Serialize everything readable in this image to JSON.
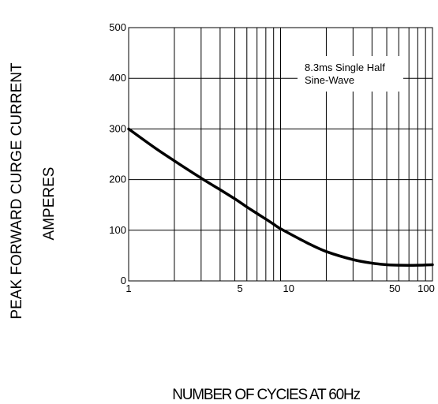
{
  "chart_data": {
    "type": "line",
    "title": "",
    "xlabel": "NUMBER OF CYCIES AT 60Hz",
    "ylabel": "PEAK FORWARD CURGE CURRENT",
    "ylabel2": "AMPERES",
    "xscale": "log",
    "xlim": [
      1,
      100
    ],
    "ylim": [
      0,
      500
    ],
    "grid": true,
    "x_ticks": [
      1,
      5,
      10,
      50,
      100
    ],
    "x_tick_labels": [
      "1",
      "5",
      "10",
      "50",
      "100"
    ],
    "y_ticks": [
      0,
      100,
      200,
      300,
      400,
      500
    ],
    "y_tick_labels": [
      "0",
      "100",
      "200",
      "300",
      "400",
      "500"
    ],
    "annotation": [
      "8.3ms Single Half",
      "Sine-Wave"
    ],
    "series": [
      {
        "x": [
          1,
          1.5,
          2,
          3,
          4,
          5,
          6,
          7,
          8,
          9,
          10,
          15,
          20,
          30,
          40,
          50,
          60,
          80,
          100
        ],
        "y": [
          300,
          262,
          237,
          203,
          180,
          162,
          146,
          133,
          122,
          112,
          103,
          75,
          58,
          42,
          35,
          32,
          31,
          31,
          32
        ]
      }
    ]
  }
}
